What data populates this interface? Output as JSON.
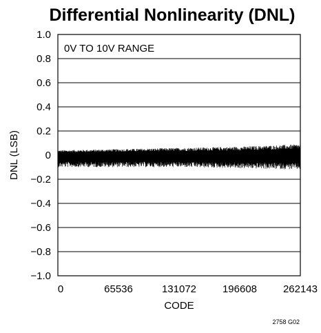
{
  "chart_data": {
    "type": "line",
    "title": "Differential Nonlinearity (DNL)",
    "xlabel": "CODE",
    "ylabel": "DNL (LSB)",
    "annotation": "0V TO 10V RANGE",
    "figure_id": "2758 G02",
    "xlim": [
      0,
      262143
    ],
    "ylim": [
      -1.0,
      1.0
    ],
    "x_ticks": [
      0,
      65536,
      131072,
      196608,
      262143
    ],
    "x_tick_labels": [
      "0",
      "65536",
      "131072",
      "196608",
      "262143"
    ],
    "y_ticks": [
      1.0,
      0.8,
      0.6,
      0.4,
      0.2,
      0,
      -0.2,
      -0.4,
      -0.6,
      -0.8,
      -1.0
    ],
    "y_tick_labels": [
      "1.0",
      "0.8",
      "0.6",
      "0.4",
      "0.2",
      "0",
      "−0.2",
      "−0.4",
      "−0.6",
      "−0.8",
      "−1.0"
    ],
    "grid": "horizontal",
    "series": [
      {
        "color": "#000000",
        "envelope": {
          "x": [
            0,
            65536,
            131072,
            196608,
            262143
          ],
          "upper": [
            0.04,
            0.05,
            0.06,
            0.07,
            0.09
          ],
          "lower": [
            -0.1,
            -0.1,
            -0.1,
            -0.11,
            -0.12
          ]
        }
      }
    ]
  }
}
